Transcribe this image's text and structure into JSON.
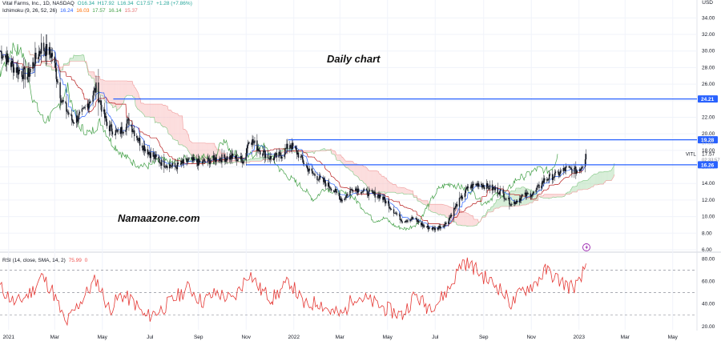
{
  "legend": {
    "symbol": "Vital Farms, Inc., 1D, NASDAQ",
    "open": "O16.34",
    "high": "H17.92",
    "low": "L16.34",
    "close": "C17.57",
    "change": "+1.28 (+7.86%)",
    "ichimoku_label": "Ichimoku (9, 26, 52, 26)",
    "ichimoku_values": [
      "16.24",
      "16.03",
      "17.57",
      "16.14",
      "15.37"
    ],
    "rsi_label": "RSI (14, close, SMA, 14, 2)",
    "rsi_value": "75.99",
    "rsi_extra": "0"
  },
  "annotations": {
    "daily_chart": "Daily chart",
    "site": "Namaazone.com"
  },
  "colors": {
    "candle_up": "#26a69a",
    "candle_down": "#ef5350",
    "hline": "#2962ff",
    "tenkan": "#2962ff",
    "kijun": "#b71c1c",
    "chikou": "#43a047",
    "cloud_bear": "#f8b4b4",
    "cloud_bull": "#a5d6a7",
    "rsi_line": "#e53935",
    "price_label": "#2962ff"
  },
  "chart_data": {
    "type": "candlestick",
    "symbol": "VITL",
    "unit": "USD",
    "price_axis": {
      "min": 6,
      "max": 35,
      "ticks": [
        6,
        8,
        10,
        12,
        14,
        16,
        18,
        20,
        22,
        24,
        26,
        28,
        30,
        32,
        34
      ],
      "tick_labels": [
        "6.00",
        "8.00",
        "10.00",
        "12.00",
        "14.00",
        "16.00",
        "18.00",
        "20.00",
        "22.00",
        "24.00",
        "26.00",
        "28.00",
        "30.00",
        "32.00",
        "34.00"
      ]
    },
    "time_axis": {
      "start": "2020-12-21",
      "end": "2023-06-01",
      "labels": [
        {
          "date": "2021-01-01",
          "text": "2021"
        },
        {
          "date": "2021-03-01",
          "text": "Mar"
        },
        {
          "date": "2021-05-01",
          "text": "May"
        },
        {
          "date": "2021-07-01",
          "text": "Jul"
        },
        {
          "date": "2021-09-01",
          "text": "Sep"
        },
        {
          "date": "2021-11-01",
          "text": "Nov"
        },
        {
          "date": "2022-01-01",
          "text": "2022"
        },
        {
          "date": "2022-03-01",
          "text": "Mar"
        },
        {
          "date": "2022-05-01",
          "text": "May"
        },
        {
          "date": "2022-07-01",
          "text": "Jul"
        },
        {
          "date": "2022-09-01",
          "text": "Sep"
        },
        {
          "date": "2022-11-01",
          "text": "Nov"
        },
        {
          "date": "2023-01-01",
          "text": "2023"
        },
        {
          "date": "2023-03-01",
          "text": "Mar"
        },
        {
          "date": "2023-05-01",
          "text": "May"
        }
      ]
    },
    "price_path": [
      {
        "date": "2020-12-21",
        "close": 30.0
      },
      {
        "date": "2021-01-08",
        "close": 28.0
      },
      {
        "date": "2021-01-25",
        "close": 27.0
      },
      {
        "date": "2021-02-12",
        "close": 30.5
      },
      {
        "date": "2021-02-26",
        "close": 29.5
      },
      {
        "date": "2021-03-10",
        "close": 24.0
      },
      {
        "date": "2021-03-24",
        "close": 21.5
      },
      {
        "date": "2021-04-06",
        "close": 22.5
      },
      {
        "date": "2021-04-23",
        "close": 25.5
      },
      {
        "date": "2021-05-07",
        "close": 21.0
      },
      {
        "date": "2021-05-21",
        "close": 20.0
      },
      {
        "date": "2021-06-04",
        "close": 21.5
      },
      {
        "date": "2021-06-18",
        "close": 19.0
      },
      {
        "date": "2021-07-02",
        "close": 17.5
      },
      {
        "date": "2021-07-16",
        "close": 16.5
      },
      {
        "date": "2021-08-02",
        "close": 16.0
      },
      {
        "date": "2021-08-20",
        "close": 16.8
      },
      {
        "date": "2021-09-03",
        "close": 16.5
      },
      {
        "date": "2021-09-24",
        "close": 17.0
      },
      {
        "date": "2021-10-15",
        "close": 17.2
      },
      {
        "date": "2021-10-29",
        "close": 16.8
      },
      {
        "date": "2021-11-05",
        "close": 19.5
      },
      {
        "date": "2021-11-19",
        "close": 18.0
      },
      {
        "date": "2021-12-03",
        "close": 17.0
      },
      {
        "date": "2021-12-17",
        "close": 17.5
      },
      {
        "date": "2021-12-27",
        "close": 18.8
      },
      {
        "date": "2022-01-07",
        "close": 17.5
      },
      {
        "date": "2022-01-21",
        "close": 15.5
      },
      {
        "date": "2022-02-04",
        "close": 14.5
      },
      {
        "date": "2022-02-18",
        "close": 13.5
      },
      {
        "date": "2022-03-04",
        "close": 12.0
      },
      {
        "date": "2022-03-18",
        "close": 13.5
      },
      {
        "date": "2022-04-01",
        "close": 13.0
      },
      {
        "date": "2022-04-22",
        "close": 12.5
      },
      {
        "date": "2022-05-06",
        "close": 11.0
      },
      {
        "date": "2022-05-20",
        "close": 9.5
      },
      {
        "date": "2022-06-03",
        "close": 9.8
      },
      {
        "date": "2022-06-17",
        "close": 8.8
      },
      {
        "date": "2022-07-01",
        "close": 8.5
      },
      {
        "date": "2022-07-15",
        "close": 9.2
      },
      {
        "date": "2022-07-29",
        "close": 11.5
      },
      {
        "date": "2022-08-12",
        "close": 13.5
      },
      {
        "date": "2022-08-26",
        "close": 14.0
      },
      {
        "date": "2022-09-09",
        "close": 13.5
      },
      {
        "date": "2022-09-23",
        "close": 13.0
      },
      {
        "date": "2022-10-07",
        "close": 11.5
      },
      {
        "date": "2022-10-21",
        "close": 12.5
      },
      {
        "date": "2022-11-04",
        "close": 12.8
      },
      {
        "date": "2022-11-18",
        "close": 14.5
      },
      {
        "date": "2022-12-02",
        "close": 15.0
      },
      {
        "date": "2022-12-16",
        "close": 15.8
      },
      {
        "date": "2022-12-30",
        "close": 15.5
      },
      {
        "date": "2023-01-06",
        "close": 16.3
      },
      {
        "date": "2023-01-10",
        "close": 17.57
      }
    ],
    "horizontal_levels": [
      {
        "value": 24.21,
        "label": "24.21",
        "from": "2021-05-15"
      },
      {
        "value": 19.28,
        "label": "19.28",
        "from": "2021-12-25"
      },
      {
        "value": 16.26,
        "label": "16.26",
        "from": "2021-11-01"
      }
    ],
    "last_price": {
      "ticker": "VITL",
      "value": "17.57",
      "countdown": "02:33:57",
      "low_label": "17.00"
    },
    "rsi": {
      "min": 17,
      "max": 84,
      "ticks": [
        20,
        40,
        60,
        80
      ],
      "tick_labels": [
        "20.00",
        "40.00",
        "60.00",
        "80.00"
      ],
      "bands": [
        30,
        50,
        70
      ],
      "points": [
        {
          "date": "2020-12-21",
          "value": 55
        },
        {
          "date": "2021-01-10",
          "value": 40
        },
        {
          "date": "2021-02-01",
          "value": 52
        },
        {
          "date": "2021-02-12",
          "value": 65
        },
        {
          "date": "2021-02-26",
          "value": 52
        },
        {
          "date": "2021-03-15",
          "value": 22
        },
        {
          "date": "2021-04-01",
          "value": 40
        },
        {
          "date": "2021-04-23",
          "value": 62
        },
        {
          "date": "2021-05-10",
          "value": 35
        },
        {
          "date": "2021-05-25",
          "value": 48
        },
        {
          "date": "2021-06-10",
          "value": 42
        },
        {
          "date": "2021-06-25",
          "value": 28
        },
        {
          "date": "2021-07-15",
          "value": 35
        },
        {
          "date": "2021-08-02",
          "value": 45
        },
        {
          "date": "2021-08-20",
          "value": 55
        },
        {
          "date": "2021-09-05",
          "value": 42
        },
        {
          "date": "2021-09-25",
          "value": 50
        },
        {
          "date": "2021-10-15",
          "value": 43
        },
        {
          "date": "2021-11-05",
          "value": 68
        },
        {
          "date": "2021-11-20",
          "value": 52
        },
        {
          "date": "2021-12-05",
          "value": 45
        },
        {
          "date": "2021-12-27",
          "value": 60
        },
        {
          "date": "2022-01-15",
          "value": 38
        },
        {
          "date": "2022-02-01",
          "value": 42
        },
        {
          "date": "2022-02-18",
          "value": 33
        },
        {
          "date": "2022-03-04",
          "value": 30
        },
        {
          "date": "2022-03-20",
          "value": 48
        },
        {
          "date": "2022-04-10",
          "value": 42
        },
        {
          "date": "2022-05-01",
          "value": 35
        },
        {
          "date": "2022-05-20",
          "value": 30
        },
        {
          "date": "2022-06-05",
          "value": 48
        },
        {
          "date": "2022-06-20",
          "value": 38
        },
        {
          "date": "2022-07-05",
          "value": 42
        },
        {
          "date": "2022-07-20",
          "value": 55
        },
        {
          "date": "2022-08-05",
          "value": 78
        },
        {
          "date": "2022-08-20",
          "value": 72
        },
        {
          "date": "2022-09-05",
          "value": 62
        },
        {
          "date": "2022-09-20",
          "value": 55
        },
        {
          "date": "2022-10-07",
          "value": 40
        },
        {
          "date": "2022-10-21",
          "value": 52
        },
        {
          "date": "2022-11-05",
          "value": 58
        },
        {
          "date": "2022-11-20",
          "value": 70
        },
        {
          "date": "2022-12-05",
          "value": 62
        },
        {
          "date": "2022-12-20",
          "value": 55
        },
        {
          "date": "2023-01-02",
          "value": 58
        },
        {
          "date": "2023-01-10",
          "value": 75.99
        }
      ]
    },
    "grid": true
  }
}
